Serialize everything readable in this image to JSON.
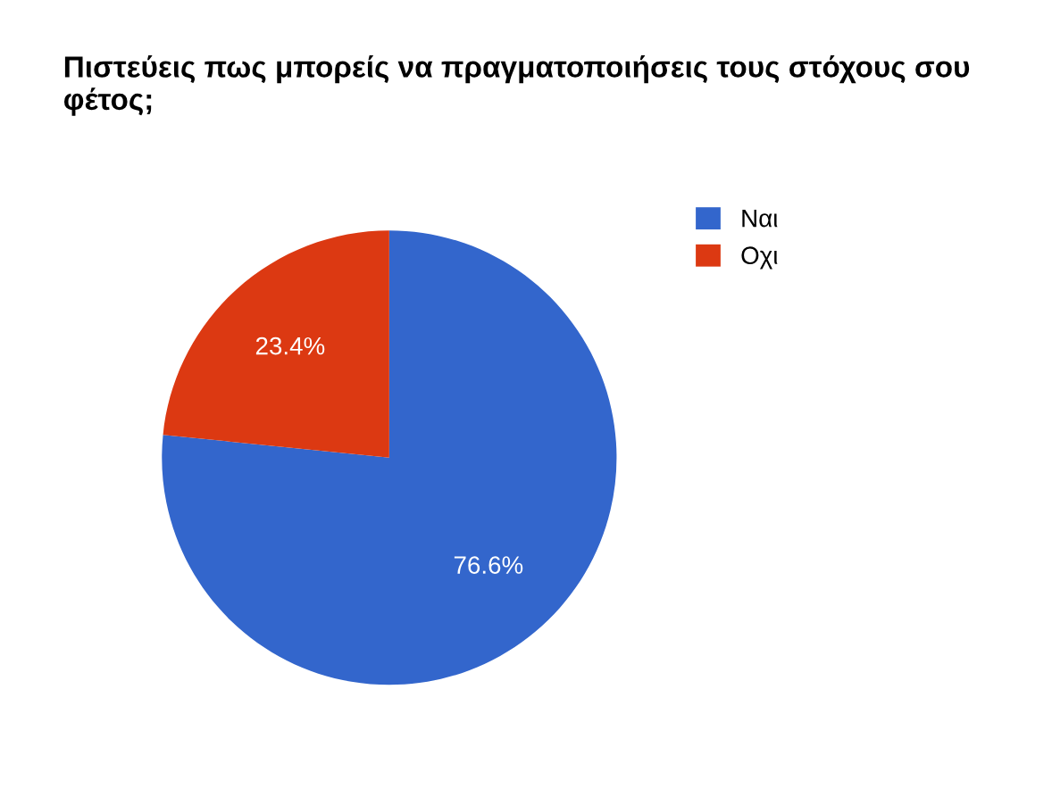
{
  "chart_data": {
    "type": "pie",
    "title": "Πιστεύεις πως μπορείς να πραγματοποιήσεις τους στόχους σου φέτος;",
    "categories": [
      "Ναι",
      "Οχι"
    ],
    "values": [
      76.6,
      23.4
    ],
    "colors": [
      "#3366cc",
      "#dc3912"
    ],
    "value_labels": [
      "76.6%",
      "23.4%"
    ],
    "legend": "top right"
  }
}
